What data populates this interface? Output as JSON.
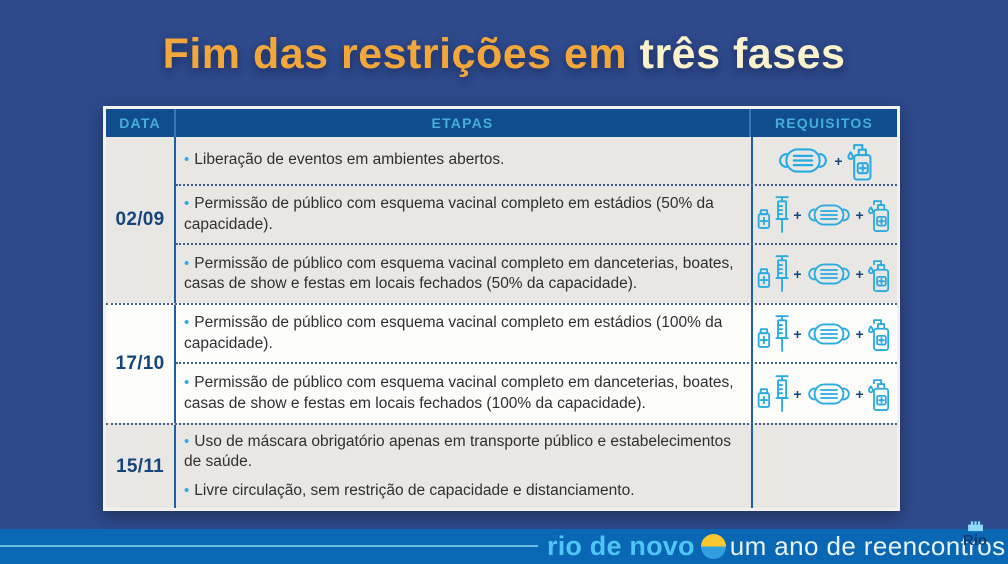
{
  "page": {
    "title_part1": "Fim das restrições em ",
    "title_part2": "três fases"
  },
  "table": {
    "headers": [
      "DATA",
      "ETAPAS",
      "REQUISITOS"
    ],
    "groups": [
      {
        "date": "02/09",
        "rows": [
          {
            "bullets": [
              "Liberação de eventos em ambientes abertos."
            ],
            "icons": [
              "mask",
              "sanitizer"
            ]
          },
          {
            "bullets": [
              "Permissão de público com esquema vacinal completo em estádios (50% da capacidade)."
            ],
            "icons": [
              "vaccine",
              "mask",
              "sanitizer"
            ]
          },
          {
            "bullets": [
              "Permissão de público com esquema vacinal completo em danceterias, boates, casas de show e festas em locais fechados (50% da capacidade)."
            ],
            "icons": [
              "vaccine",
              "mask",
              "sanitizer"
            ]
          }
        ]
      },
      {
        "date": "17/10",
        "rows": [
          {
            "bullets": [
              "Permissão de público com esquema vacinal completo em estádios (100% da capacidade)."
            ],
            "icons": [
              "vaccine",
              "mask",
              "sanitizer"
            ]
          },
          {
            "bullets": [
              "Permissão de público com esquema vacinal completo em danceterias, boates, casas de show e festas em locais fechados (100% da capacidade)."
            ],
            "icons": [
              "vaccine",
              "mask",
              "sanitizer"
            ]
          }
        ]
      },
      {
        "date": "15/11",
        "rows": [
          {
            "bullets": [
              "Uso de máscara obrigatório apenas em transporte público e estabelecimentos de saúde.",
              "Livre circulação, sem restrição de capacidade e distanciamento."
            ],
            "icons": []
          }
        ]
      }
    ]
  },
  "footer": {
    "brand": "rio de novo",
    "tagline": "um ano de reencontros",
    "emblem_text": "Rio",
    "plus_symbol": "+",
    "bullet_symbol": "•"
  },
  "colors": {
    "bg": "#2e4a8c",
    "title_orange": "#f3a73a",
    "title_cream": "#fbf2cb",
    "header_bg": "#0f4d8d",
    "header_text": "#45aede",
    "row_gray": "#e9e7e4",
    "row_white": "#fcfcfb",
    "date_text": "#16457c",
    "body_text": "#2f2f2f",
    "icon_blue": "#29abe2",
    "divider_blue": "#1d5fa5",
    "dotted": "#44618c",
    "footer_bg": "#0a67b3",
    "brand_cyan": "#4ec5f4",
    "tagline": "#e6f3fc",
    "sun_yellow": "#f9c831",
    "sun_blue": "#2f9fe0",
    "emblem_text": "#0d3a70",
    "emblem_icon": "#8fd9f8",
    "table_border": "#f2f1ee"
  }
}
